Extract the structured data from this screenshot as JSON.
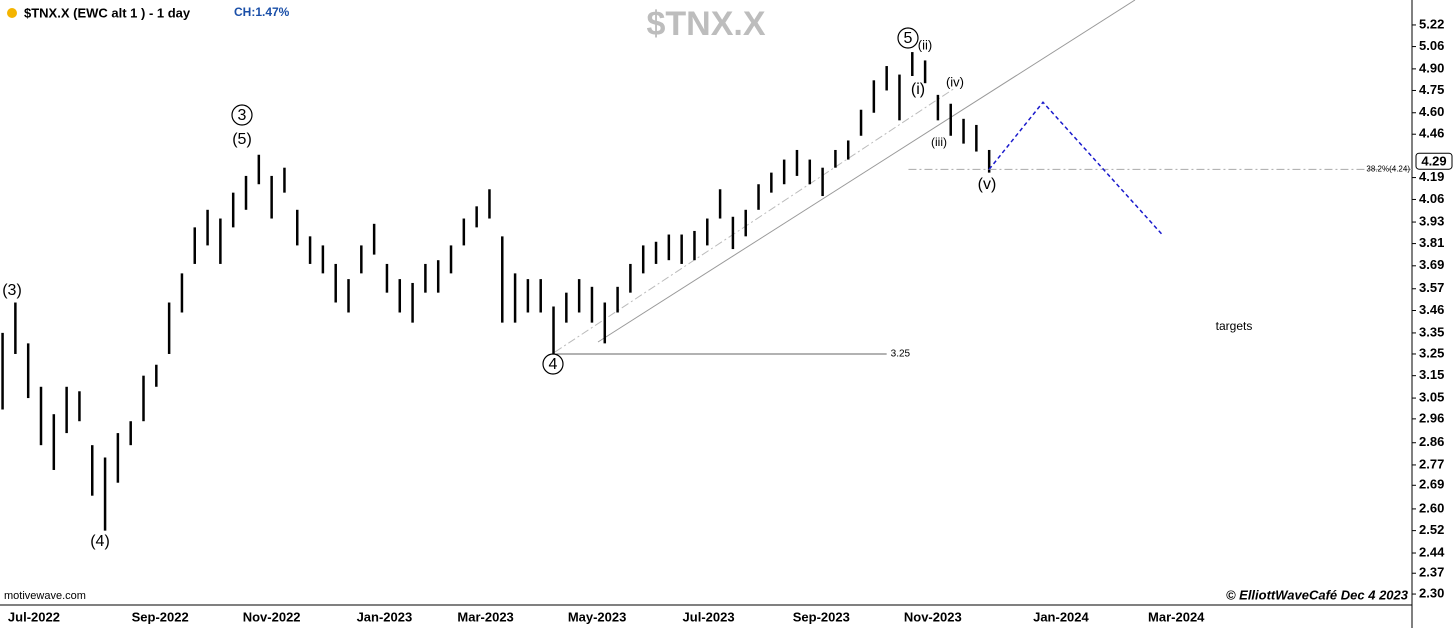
{
  "chart_data": {
    "type": "ohlc",
    "title": "$TNX.X (EWC alt 1 ) - 1 day",
    "change": "CH:1.47%",
    "watermark": "$TNX.X",
    "source": "motivewave.com",
    "credit": "© ElliottWaveCafé Dec 4 2023",
    "last_price": 4.29,
    "log_scale": true,
    "color": "#000000",
    "x": [
      0,
      1,
      2,
      3,
      4,
      5,
      6,
      7,
      8,
      9,
      10,
      11,
      12,
      13,
      14,
      15,
      16,
      17,
      18,
      19,
      20,
      21,
      22,
      23,
      24,
      25,
      26,
      27,
      28,
      29,
      30,
      31,
      32,
      33,
      34,
      35,
      36,
      37,
      38,
      39,
      40,
      41,
      42,
      43,
      44,
      45,
      46,
      47,
      48,
      49,
      50,
      51,
      52,
      53,
      54,
      55,
      56,
      57,
      58,
      59,
      60,
      61,
      62,
      63,
      64,
      65,
      66,
      67,
      68,
      69,
      70,
      71,
      72,
      73,
      74,
      75,
      76,
      77
    ],
    "low": [
      3.0,
      3.25,
      3.05,
      2.85,
      2.75,
      2.9,
      2.95,
      2.65,
      2.52,
      2.7,
      2.85,
      2.95,
      3.1,
      3.25,
      3.45,
      3.7,
      3.8,
      3.7,
      3.9,
      4.0,
      4.15,
      3.95,
      4.1,
      3.8,
      3.7,
      3.65,
      3.5,
      3.45,
      3.65,
      3.75,
      3.55,
      3.45,
      3.4,
      3.55,
      3.55,
      3.65,
      3.8,
      3.9,
      3.95,
      3.4,
      3.4,
      3.45,
      3.45,
      3.25,
      3.4,
      3.45,
      3.4,
      3.3,
      3.45,
      3.55,
      3.65,
      3.7,
      3.72,
      3.7,
      3.72,
      3.8,
      3.95,
      3.78,
      3.85,
      4.0,
      4.1,
      4.15,
      4.2,
      4.15,
      4.08,
      4.25,
      4.3,
      4.45,
      4.6,
      4.75,
      4.55,
      4.85,
      4.8,
      4.55,
      4.45,
      4.4,
      4.35,
      4.22
    ],
    "high": [
      3.35,
      3.5,
      3.3,
      3.1,
      2.98,
      3.1,
      3.08,
      2.85,
      2.8,
      2.9,
      2.95,
      3.15,
      3.2,
      3.5,
      3.65,
      3.9,
      4.0,
      3.95,
      4.1,
      4.2,
      4.33,
      4.2,
      4.25,
      4.0,
      3.85,
      3.8,
      3.7,
      3.62,
      3.8,
      3.92,
      3.7,
      3.62,
      3.6,
      3.7,
      3.72,
      3.8,
      3.95,
      4.02,
      4.12,
      3.85,
      3.65,
      3.62,
      3.62,
      3.48,
      3.55,
      3.62,
      3.58,
      3.5,
      3.58,
      3.7,
      3.8,
      3.82,
      3.86,
      3.86,
      3.88,
      3.95,
      4.12,
      3.96,
      4.0,
      4.15,
      4.22,
      4.3,
      4.36,
      4.3,
      4.25,
      4.36,
      4.42,
      4.62,
      4.82,
      4.92,
      4.86,
      5.02,
      4.96,
      4.72,
      4.66,
      4.56,
      4.52,
      4.36
    ],
    "projection": {
      "color": "#1a1acc",
      "x": [
        77,
        81.2,
        90.5
      ],
      "values": [
        4.24,
        4.67,
        3.86
      ]
    },
    "levels": [
      {
        "value": 3.25,
        "label": 3.25,
        "from": 43,
        "to": 69
      },
      {
        "value": 4.24,
        "label": "38.2%(4.24)",
        "from": 70.7,
        "to": 110
      }
    ],
    "annotations": [
      {
        "text": "(3)"
      },
      {
        "text": "3",
        "circled": true
      },
      {
        "text": "(5)"
      },
      {
        "text": "(4)"
      },
      {
        "text": "4",
        "circled": true
      },
      {
        "text": "5",
        "circled": true
      },
      {
        "text": "(ii)"
      },
      {
        "text": "(i)"
      },
      {
        "text": "(iv)"
      },
      {
        "text": "(iii)"
      },
      {
        "text": "(v)"
      },
      {
        "text": "targets"
      }
    ],
    "xlim": [
      -0.2,
      110
    ],
    "xticks": [
      {
        "value": 2.45,
        "label": "Jul-2022"
      },
      {
        "value": 12.3,
        "label": "Sep-2022"
      },
      {
        "value": 21.0,
        "label": "Nov-2022"
      },
      {
        "value": 29.8,
        "label": "Jan-2023"
      },
      {
        "value": 37.7,
        "label": "Mar-2023"
      },
      {
        "value": 46.4,
        "label": "May-2023"
      },
      {
        "value": 55.1,
        "label": "Jul-2023"
      },
      {
        "value": 63.9,
        "label": "Sep-2023"
      },
      {
        "value": 72.6,
        "label": "Nov-2023"
      },
      {
        "value": 82.6,
        "label": "Jan-2024"
      },
      {
        "value": 91.6,
        "label": "Mar-2024"
      }
    ],
    "ylim": [
      2.264,
      5.411
    ],
    "yticks": [
      5.22,
      5.06,
      {
        "value": 4.9,
        "label": "4.90"
      },
      4.75,
      {
        "value": 4.6,
        "label": "4.60"
      },
      4.46,
      4.19,
      4.06,
      3.93,
      3.81,
      3.69,
      3.57,
      3.46,
      3.35,
      3.25,
      3.15,
      3.05,
      2.96,
      2.86,
      2.77,
      2.69,
      {
        "value": 2.6,
        "label": "2.60"
      },
      2.52,
      2.44,
      2.37,
      {
        "value": 2.3,
        "label": "2.30"
      }
    ]
  }
}
